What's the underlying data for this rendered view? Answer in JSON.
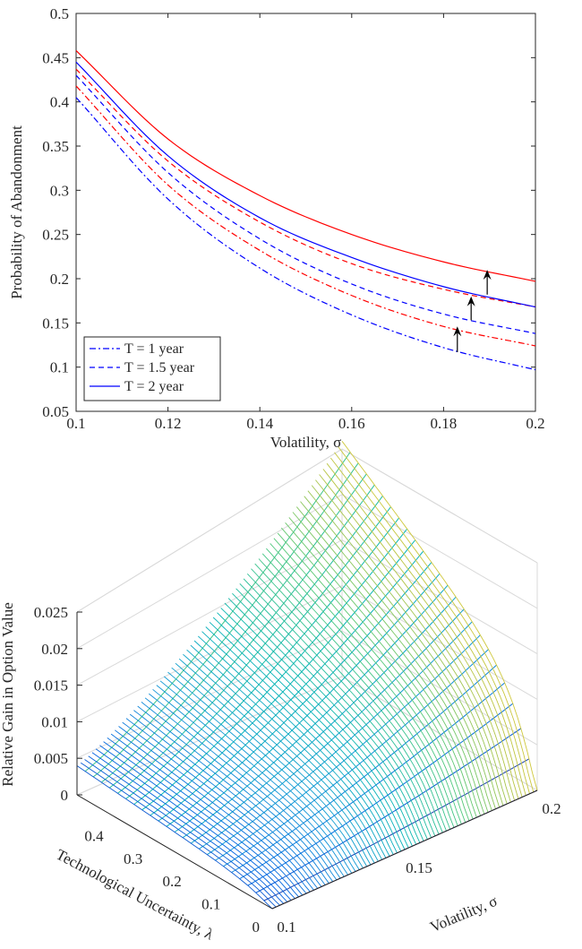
{
  "chart_data": [
    {
      "type": "line",
      "title": "",
      "xlabel": "Volatility, σ",
      "ylabel": "Probability of Abandonment",
      "xlim": [
        0.1,
        0.2
      ],
      "ylim": [
        0.05,
        0.5
      ],
      "xticks": [
        "0.1",
        "0.12",
        "0.14",
        "0.16",
        "0.18",
        "0.2"
      ],
      "yticks": [
        "0.05",
        "0.1",
        "0.15",
        "0.2",
        "0.25",
        "0.3",
        "0.35",
        "0.4",
        "0.45",
        "0.5"
      ],
      "grid": false,
      "legend_position": "bottom-left",
      "legend": [
        "T = 1 year",
        "T = 1.5 year",
        "T = 2 year"
      ],
      "x": [
        0.1,
        0.12,
        0.14,
        0.16,
        0.18,
        0.2
      ],
      "series": [
        {
          "name": "T = 1 year",
          "color": "#0000ff",
          "dash": "dash-dot",
          "values": [
            0.405,
            0.29,
            0.212,
            0.159,
            0.122,
            0.097
          ]
        },
        {
          "name": "T = 1 year",
          "color": "#ff0000",
          "dash": "dash-dot",
          "values": [
            0.418,
            0.306,
            0.232,
            0.181,
            0.146,
            0.124
          ]
        },
        {
          "name": "T = 1.5 year",
          "color": "#0000ff",
          "dash": "dashed",
          "values": [
            0.43,
            0.32,
            0.245,
            0.194,
            0.16,
            0.138
          ]
        },
        {
          "name": "T = 1.5 year",
          "color": "#ff0000",
          "dash": "dashed",
          "values": [
            0.437,
            0.333,
            0.264,
            0.217,
            0.188,
            0.168
          ]
        },
        {
          "name": "T = 2 year",
          "color": "#0000ff",
          "dash": "solid",
          "values": [
            0.445,
            0.339,
            0.269,
            0.224,
            0.191,
            0.168
          ]
        },
        {
          "name": "T = 2 year",
          "color": "#ff0000",
          "dash": "solid",
          "values": [
            0.458,
            0.358,
            0.294,
            0.25,
            0.219,
            0.197
          ]
        }
      ],
      "annotations": [
        {
          "type": "arrow",
          "x": 0.183,
          "y_from": 0.117,
          "y_to": 0.146
        },
        {
          "type": "arrow",
          "x": 0.186,
          "y_from": 0.153,
          "y_to": 0.18
        },
        {
          "type": "arrow",
          "x": 0.1895,
          "y_from": 0.182,
          "y_to": 0.21
        }
      ]
    },
    {
      "type": "surface",
      "title": "",
      "xlabel": "Volatility, σ",
      "ylabel": "Technological Uncertainty, λ",
      "zlabel": "Relative Gain in Option Value",
      "xlim": [
        0.1,
        0.2
      ],
      "ylim": [
        0,
        0.5
      ],
      "zlim": [
        0,
        0.025
      ],
      "xticks": [
        "0.1",
        "0.15",
        "0.2"
      ],
      "yticks": [
        "0",
        "0.1",
        "0.2",
        "0.3",
        "0.4"
      ],
      "zticks": [
        "0",
        "0.005",
        "0.01",
        "0.015",
        "0.02",
        "0.025"
      ],
      "colormap": "parula",
      "grid": true,
      "surface_corners": {
        "sigma_0.1_lambda_0": 0.0,
        "sigma_0.1_lambda_0.5": 0.004,
        "sigma_0.2_lambda_0": 0.0,
        "sigma_0.2_lambda_0.5": 0.026
      }
    }
  ]
}
